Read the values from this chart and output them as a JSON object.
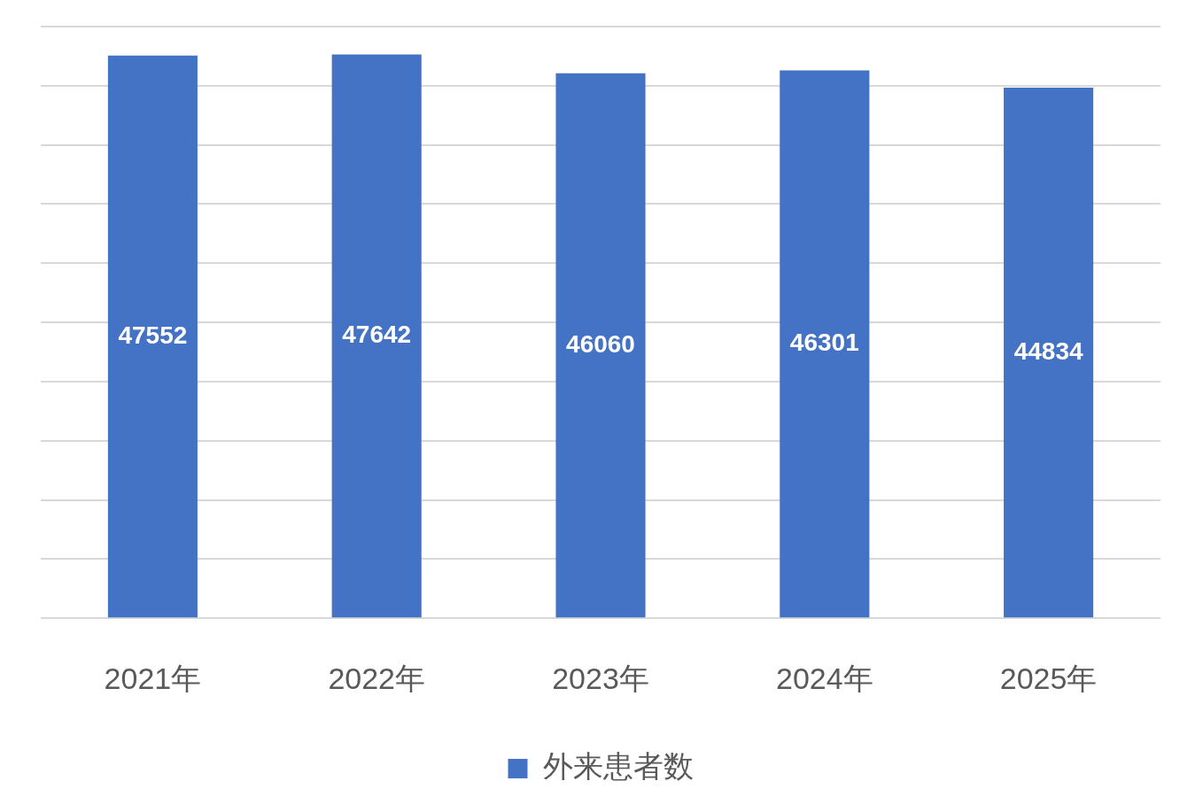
{
  "chart_data": {
    "type": "bar",
    "categories": [
      "2021年",
      "2022年",
      "2023年",
      "2024年",
      "2025年"
    ],
    "series": [
      {
        "name": "外来患者数",
        "color": "#4472c4",
        "values": [
          47552,
          47642,
          46060,
          46301,
          44834
        ]
      }
    ],
    "ylim": [
      0,
      50000
    ],
    "yticks": [
      {
        "value": 0,
        "label": null
      },
      {
        "value": 5000,
        "label": null
      },
      {
        "value": 10000,
        "label": null
      },
      {
        "value": 15000,
        "label": null
      },
      {
        "value": 20000,
        "label": null
      },
      {
        "value": 25000,
        "label": null
      },
      {
        "value": 30000,
        "label": null
      },
      {
        "value": 35000,
        "label": null
      },
      {
        "value": 40000,
        "label": null
      },
      {
        "value": 45000,
        "label": null
      },
      {
        "value": 50000,
        "label": null
      }
    ],
    "tick_labels": "x",
    "grid": "y",
    "legend": "bottom",
    "data_labels": true
  }
}
